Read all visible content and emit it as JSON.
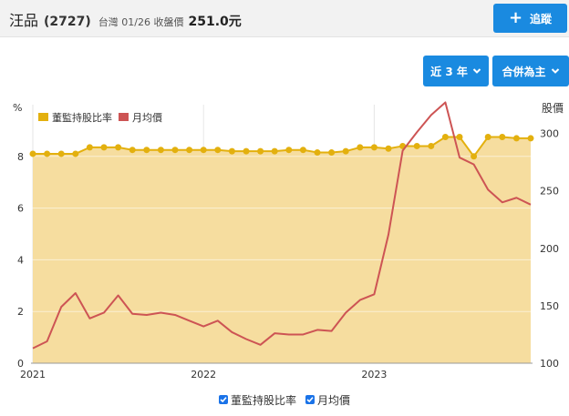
{
  "header": {
    "name": "汪品",
    "code": "(2727)",
    "info": "台灣 01/26 收盤價",
    "price": "251.0元",
    "track_label": "追蹤"
  },
  "controls": {
    "range_label": "近 3 年",
    "mode_label": "合併為主"
  },
  "colors": {
    "accent": "#1a8ae0",
    "director": "#e3b00e",
    "price": "#cd5454",
    "fill": "#f6dd9f"
  },
  "chart_data": {
    "type": "line",
    "left_axis_label": "%",
    "right_axis_label": "股價",
    "left_ylim": [
      0,
      10
    ],
    "left_ticks": [
      0,
      2,
      4,
      6,
      8
    ],
    "right_ylim": [
      100,
      325
    ],
    "right_ticks": [
      100,
      150,
      200,
      250,
      300
    ],
    "x_labels": [
      "2021",
      "2022",
      "2023"
    ],
    "legend": [
      "董監持股比率",
      "月均價"
    ],
    "x": [
      "2021-01",
      "2021-02",
      "2021-03",
      "2021-04",
      "2021-05",
      "2021-06",
      "2021-07",
      "2021-08",
      "2021-09",
      "2021-10",
      "2021-11",
      "2021-12",
      "2022-01",
      "2022-02",
      "2022-03",
      "2022-04",
      "2022-05",
      "2022-06",
      "2022-07",
      "2022-08",
      "2022-09",
      "2022-10",
      "2022-11",
      "2022-12",
      "2023-01",
      "2023-02",
      "2023-03",
      "2023-04",
      "2023-05",
      "2023-06",
      "2023-07",
      "2023-08",
      "2023-09",
      "2023-10",
      "2023-11",
      "2023-12"
    ],
    "series": [
      {
        "name": "董監持股比率",
        "axis": "left",
        "values": [
          8.1,
          8.1,
          8.1,
          8.1,
          8.35,
          8.35,
          8.35,
          8.25,
          8.25,
          8.25,
          8.25,
          8.25,
          8.25,
          8.25,
          8.2,
          8.2,
          8.2,
          8.2,
          8.25,
          8.25,
          8.15,
          8.15,
          8.2,
          8.35,
          8.35,
          8.3,
          8.4,
          8.4,
          8.4,
          8.75,
          8.75,
          8.0,
          8.75,
          8.75,
          8.7,
          8.7
        ]
      },
      {
        "name": "月均價",
        "axis": "right",
        "values": [
          113,
          119,
          149,
          161,
          139,
          144,
          159,
          143,
          142,
          144,
          142,
          137,
          132,
          137,
          127,
          121,
          116,
          126,
          125,
          125,
          129,
          128,
          144,
          155,
          160,
          212,
          285,
          301,
          316,
          327,
          279,
          273,
          251,
          240,
          244,
          238
        ]
      }
    ]
  }
}
